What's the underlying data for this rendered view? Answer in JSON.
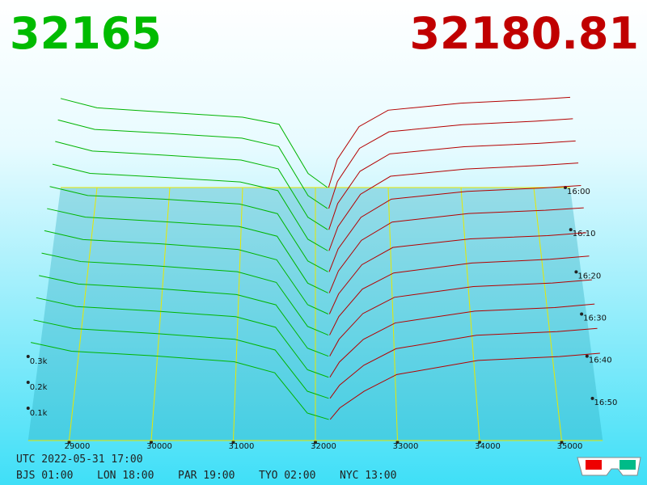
{
  "header": {
    "bid_price": "32165",
    "ask_price": "32180.81"
  },
  "chart_data": {
    "type": "depth-3d",
    "bid_color": "#00b400",
    "ask_color": "#b40000",
    "grid_color": "#e8e800",
    "xlim": [
      28500,
      35500
    ],
    "xticks": [
      29000,
      30000,
      31000,
      32000,
      33000,
      34000,
      35000
    ],
    "depth_ticks": [
      {
        "value": 300,
        "label": "0.3k"
      },
      {
        "value": 200,
        "label": "0.2k"
      },
      {
        "value": 100,
        "label": "0.1k"
      }
    ],
    "time_ticks": [
      "16:00",
      "16:10",
      "16:20",
      "16:30",
      "16:40",
      "16:50"
    ],
    "bid_prices": [
      28500,
      29000,
      30000,
      31000,
      31500,
      31900,
      32165
    ],
    "ask_prices": [
      32181,
      32300,
      32600,
      33000,
      34000,
      35000,
      35500
    ],
    "snapshots": [
      {
        "bids": [
          380,
          340,
          320,
          300,
          270,
          60,
          0
        ],
        "asks": [
          0,
          120,
          260,
          330,
          360,
          375,
          385
        ]
      },
      {
        "bids": [
          375,
          335,
          318,
          298,
          262,
          55,
          0
        ],
        "asks": [
          0,
          115,
          255,
          325,
          355,
          370,
          380
        ]
      },
      {
        "bids": [
          370,
          330,
          312,
          292,
          255,
          52,
          0
        ],
        "asks": [
          0,
          110,
          245,
          318,
          348,
          362,
          372
        ]
      },
      {
        "bids": [
          360,
          322,
          305,
          286,
          250,
          48,
          0
        ],
        "asks": [
          0,
          100,
          235,
          310,
          340,
          355,
          365
        ]
      },
      {
        "bids": [
          352,
          315,
          300,
          280,
          240,
          45,
          0
        ],
        "asks": [
          0,
          95,
          225,
          300,
          332,
          346,
          356
        ]
      },
      {
        "bids": [
          345,
          310,
          292,
          272,
          232,
          40,
          0
        ],
        "asks": [
          0,
          90,
          215,
          290,
          325,
          338,
          348
        ]
      },
      {
        "bids": [
          338,
          302,
          285,
          262,
          220,
          38,
          0
        ],
        "asks": [
          0,
          82,
          200,
          270,
          305,
          318,
          330
        ]
      },
      {
        "bids": [
          330,
          296,
          278,
          255,
          212,
          35,
          0
        ],
        "asks": [
          0,
          75,
          185,
          250,
          290,
          305,
          318
        ]
      },
      {
        "bids": [
          322,
          288,
          270,
          246,
          205,
          32,
          0
        ],
        "asks": [
          0,
          68,
          170,
          235,
          278,
          292,
          305
        ]
      },
      {
        "bids": [
          315,
          280,
          262,
          240,
          198,
          30,
          0
        ],
        "asks": [
          0,
          60,
          150,
          215,
          262,
          276,
          290
        ]
      },
      {
        "bids": [
          308,
          274,
          255,
          232,
          190,
          28,
          0
        ],
        "asks": [
          0,
          52,
          130,
          195,
          248,
          262,
          275
        ]
      },
      {
        "bids": [
          300,
          266,
          248,
          225,
          182,
          25,
          0
        ],
        "asks": [
          0,
          45,
          110,
          175,
          230,
          245,
          258
        ]
      }
    ]
  },
  "footer": {
    "utc": "UTC 2022-05-31 17:00",
    "cities": [
      "BJS 01:00",
      "LON 18:00",
      "PAR 19:00",
      "TYO 02:00",
      "NYC 13:00"
    ]
  }
}
